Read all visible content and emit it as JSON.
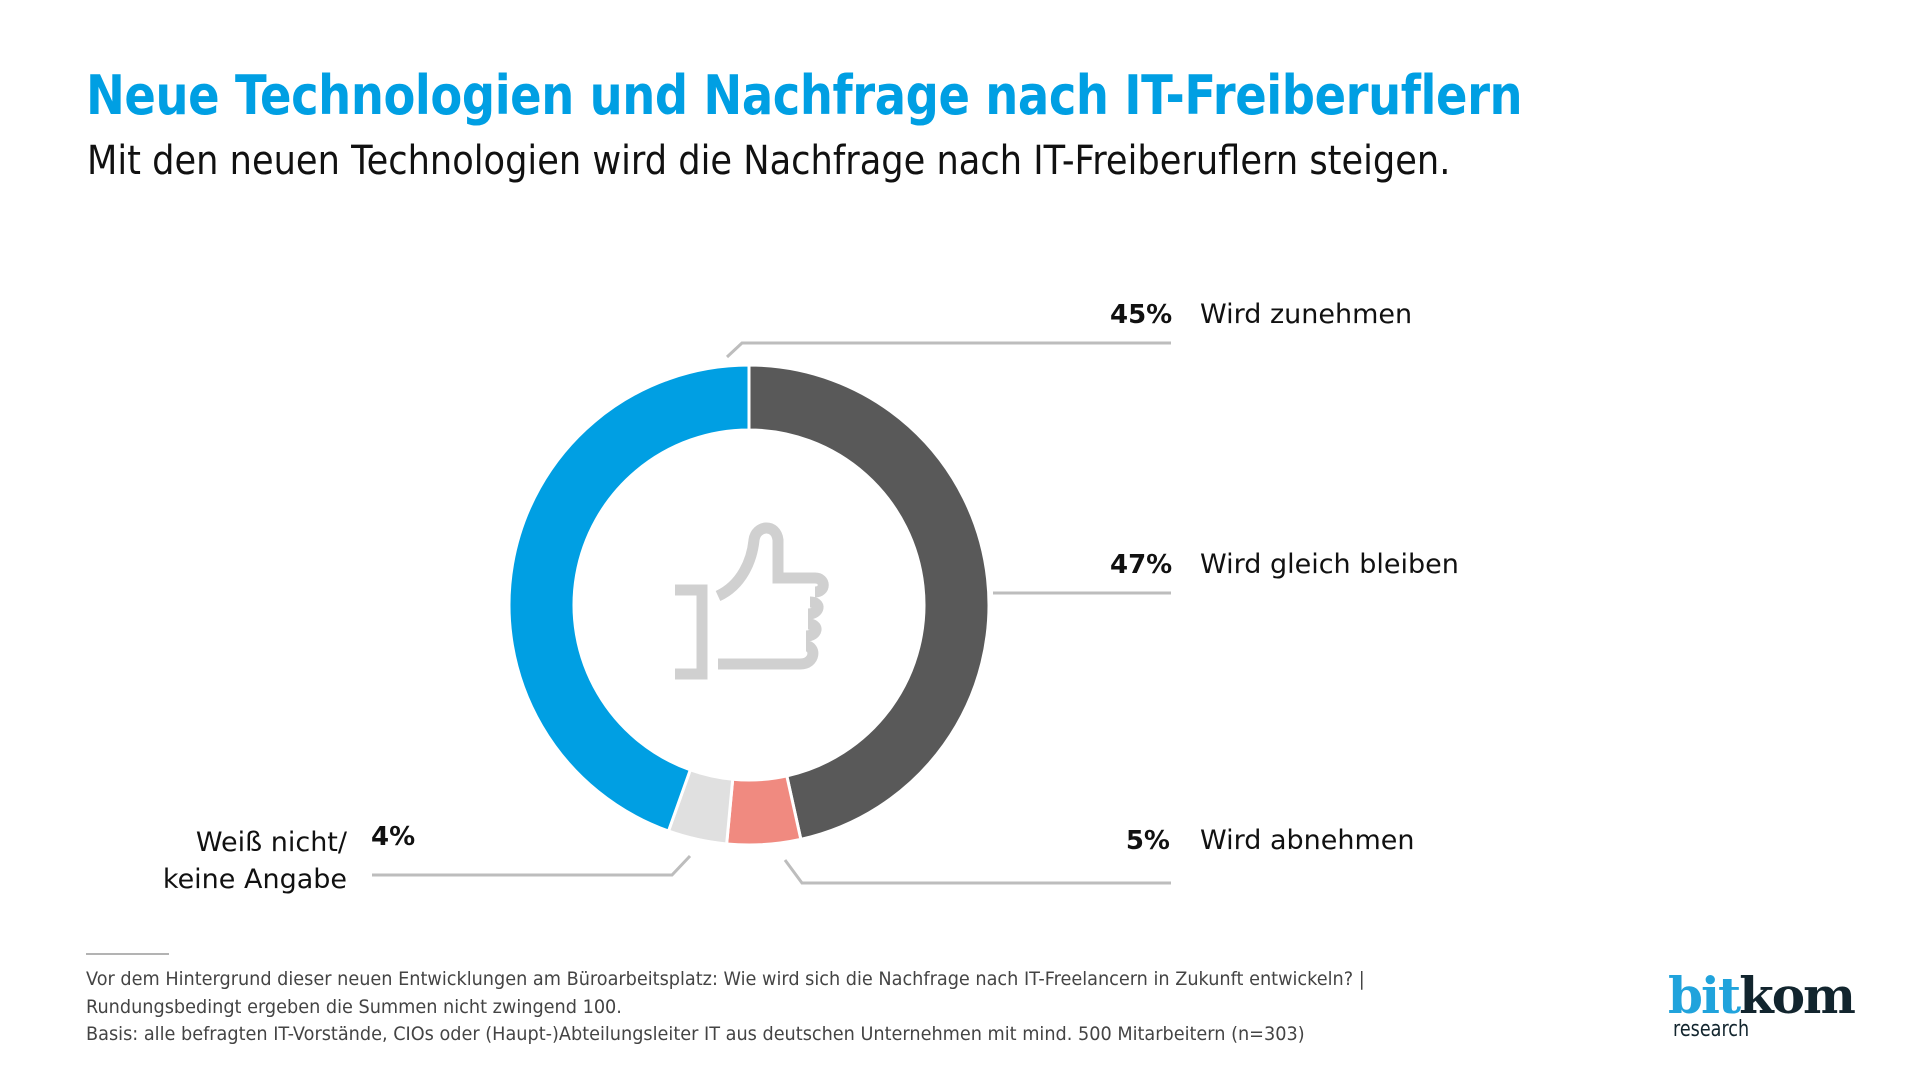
{
  "header": {
    "title": "Neue Technologien und Nachfrage nach IT-Freiberuflern",
    "subtitle": "Mit den neuen Technologien wird die Nachfrage nach IT-Freiberuflern steigen."
  },
  "chart_data": {
    "type": "pie",
    "variant": "donut",
    "title": "Neue Technologien und Nachfrage nach IT-Freiberuflern",
    "subtitle": "Mit den neuen Technologien wird die Nachfrage nach IT-Freiberuflern steigen.",
    "unit": "%",
    "center_icon": "thumbs-up-icon",
    "slices": [
      {
        "label": "Wird gleich bleiben",
        "value": 47,
        "display": "47%",
        "color": "#595959"
      },
      {
        "label": "Wird abnehmen",
        "value": 5,
        "display": "5%",
        "color": "#f08a80"
      },
      {
        "label": "Weiß nicht/ keine Angabe",
        "label_lines": [
          "Weiß nicht/",
          "keine Angabe"
        ],
        "value": 4,
        "display": "4%",
        "color": "#e0e0e0"
      },
      {
        "label": "Wird zunehmen",
        "value": 45,
        "display": "45%",
        "color": "#009fe3"
      }
    ]
  },
  "footer": {
    "lines": [
      "Vor dem Hintergrund dieser neuen Entwicklungen am Büroarbeitsplatz: Wie wird sich die Nachfrage nach IT-Freelancern in Zukunft entwickeln? |",
      "Rundungsbedingt ergeben die Summen nicht zwingend 100.",
      "Basis: alle befragten IT-Vorstände, CIOs oder (Haupt-)Abteilungsleiter IT aus deutschen Unternehmen mit mind. 500 Mitarbeitern (n=303)"
    ]
  },
  "logo": {
    "part1": "bit",
    "part2": "kom",
    "sub": "research"
  }
}
